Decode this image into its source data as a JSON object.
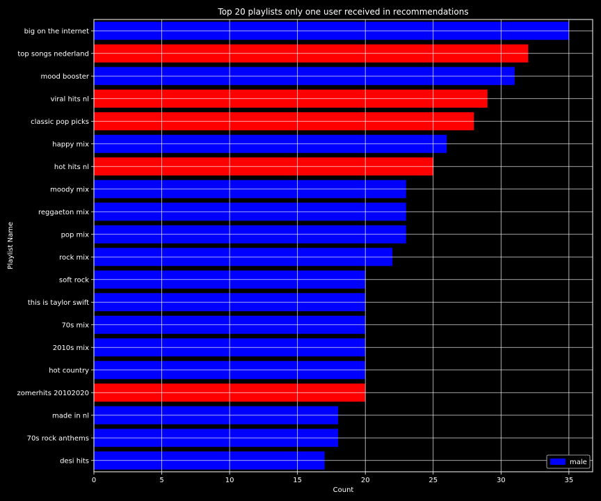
{
  "chart_data": {
    "type": "bar",
    "orientation": "horizontal",
    "title": "Top 20 playlists only one user received in recommendations",
    "xlabel": "Count",
    "ylabel": "Playlist Name",
    "xlim": [
      0,
      36.75
    ],
    "xticks": [
      0,
      5,
      10,
      15,
      20,
      25,
      30,
      35
    ],
    "grid": true,
    "legend": {
      "placement": "bottom-right",
      "entries": [
        {
          "label": "male",
          "color": "#0000ff"
        }
      ]
    },
    "colors": {
      "male": "#0000ff",
      "female": "#ff0000",
      "background": "#000000",
      "text": "#ffffff",
      "grid": "#ffffff"
    },
    "categories": [
      "big on the internet",
      "top songs nederland",
      "mood booster",
      "viral hits nl",
      "classic pop picks",
      "happy mix",
      "hot hits nl",
      "moody mix",
      "reggaeton mix",
      "pop mix",
      "rock mix",
      "soft rock",
      "this is taylor swift",
      "70s mix",
      "2010s mix",
      "hot country",
      "zomerhits 20102020",
      "made in nl",
      "70s rock anthems",
      "desi hits"
    ],
    "values": [
      35,
      32,
      31,
      29,
      28,
      26,
      25,
      23,
      23,
      23,
      22,
      20,
      20,
      20,
      20,
      20,
      20,
      18,
      18,
      17
    ],
    "bar_colors": [
      "#0000ff",
      "#ff0000",
      "#0000ff",
      "#ff0000",
      "#ff0000",
      "#0000ff",
      "#ff0000",
      "#0000ff",
      "#0000ff",
      "#0000ff",
      "#0000ff",
      "#0000ff",
      "#0000ff",
      "#0000ff",
      "#0000ff",
      "#0000ff",
      "#ff0000",
      "#0000ff",
      "#0000ff",
      "#0000ff"
    ]
  }
}
